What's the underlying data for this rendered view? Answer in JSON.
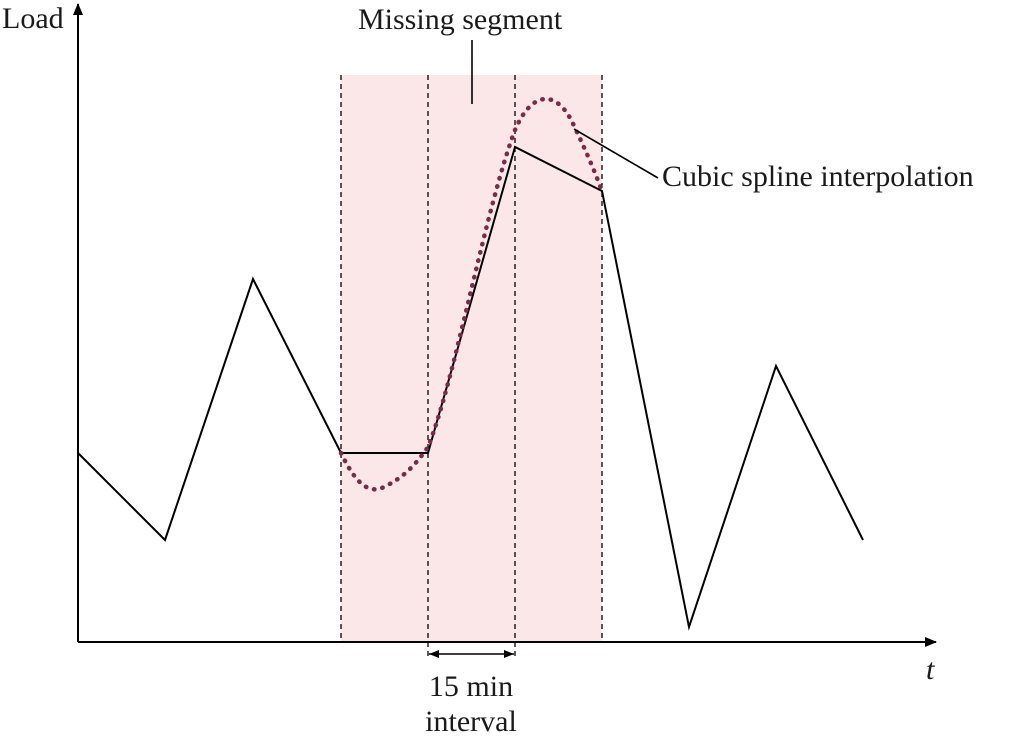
{
  "labels": {
    "y_axis": "Load",
    "x_axis": "t",
    "missing_segment": "Missing segment",
    "spline": "Cubic spline interpolation",
    "interval_line1": "15 min",
    "interval_line2": "interval"
  },
  "colors": {
    "axis": "#000000",
    "load_line": "#000000",
    "missing_band": "#fbe7e8",
    "spline": "#7b2a4a",
    "guide_dash": "#000000"
  },
  "series": {
    "load_profile_t": [
      0,
      1,
      2,
      3,
      4,
      5,
      6,
      7,
      8,
      9
    ],
    "load_profile_value": [
      0.35,
      0.19,
      0.65,
      0.35,
      0.35,
      0.89,
      0.81,
      0.03,
      0.51,
      0.19
    ],
    "missing_interval_index": [
      3,
      6
    ],
    "interval_minutes": 15,
    "spline_points": [
      [
        3,
        0.35
      ],
      [
        3.4,
        0.28
      ],
      [
        4,
        0.35
      ],
      [
        4.5,
        0.66
      ],
      [
        5,
        0.89
      ],
      [
        5.4,
        0.96
      ],
      [
        6,
        0.81
      ]
    ]
  }
}
